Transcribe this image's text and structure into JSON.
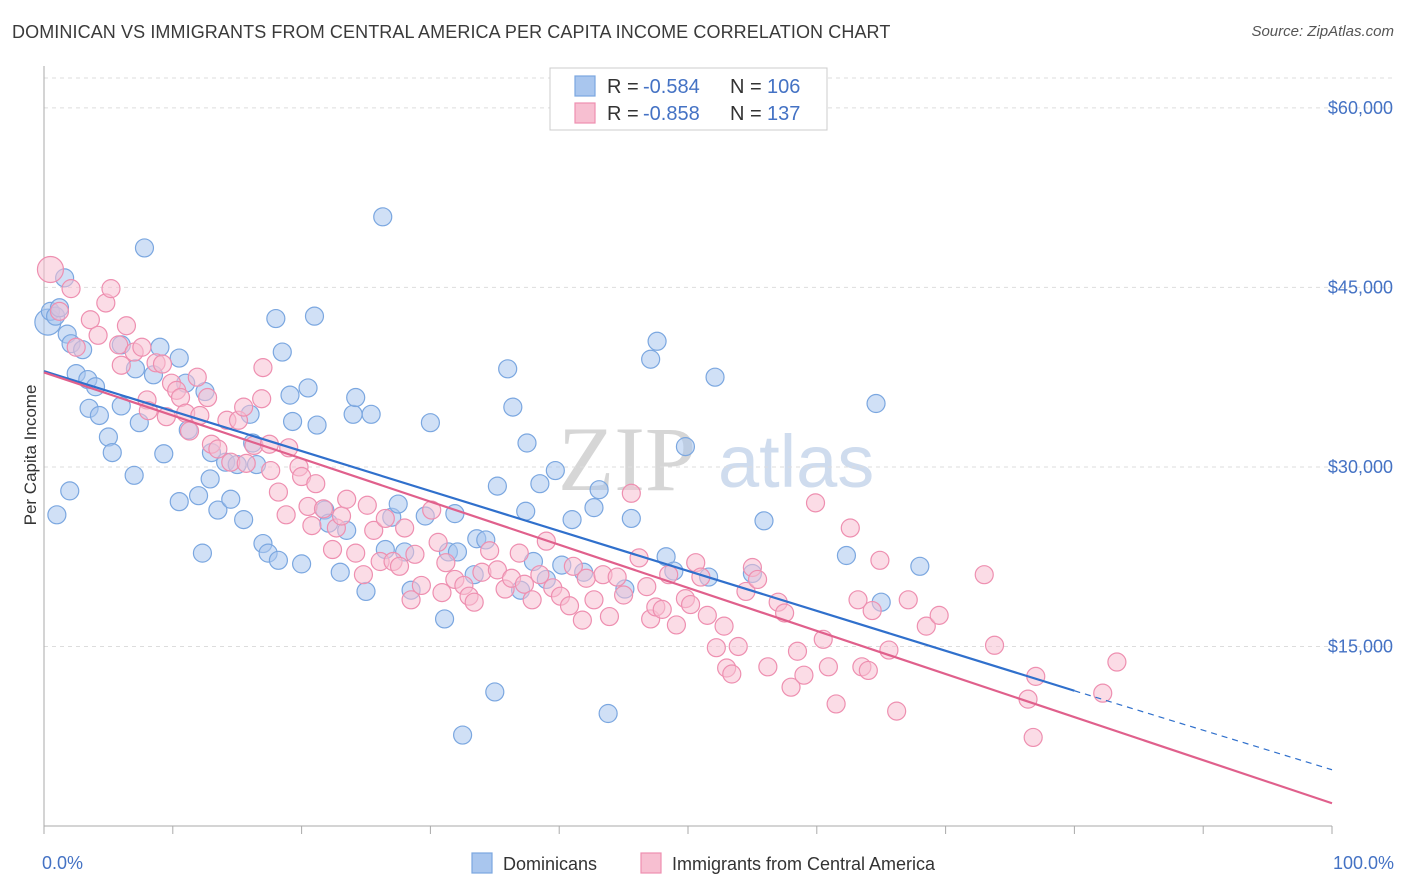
{
  "header": {
    "title": "DOMINICAN VS IMMIGRANTS FROM CENTRAL AMERICA PER CAPITA INCOME CORRELATION CHART",
    "source": "Source: ZipAtlas.com"
  },
  "watermark": {
    "zip": "ZIP",
    "atlas": "atlas"
  },
  "legend": {
    "rows": [
      {
        "r_label": "R = ",
        "r_value": "-0.584",
        "n_label": "N = ",
        "n_value": "106",
        "color": "#7ba7e0"
      },
      {
        "r_label": "R = ",
        "r_value": "-0.858",
        "n_label": "N = ",
        "n_value": "137",
        "color": "#f29bb8"
      }
    ]
  },
  "colors": {
    "blue_fill": "#a9c6ee",
    "blue_stroke": "#7ba7e0",
    "blue_line": "#3070cc",
    "pink_fill": "#f7bfd1",
    "pink_stroke": "#ee8fb0",
    "pink_line": "#e0608c",
    "grid": "#dddddd",
    "tick_label": "#4472c4"
  },
  "chart_data": {
    "type": "scatter",
    "title": "DOMINICAN VS IMMIGRANTS FROM CENTRAL AMERICA PER CAPITA INCOME CORRELATION CHART",
    "xlabel": "",
    "ylabel": "Per Capita Income",
    "xlim": [
      0,
      100
    ],
    "ylim": [
      0,
      63000
    ],
    "x_tick_labels": [
      "0.0%",
      "100.0%"
    ],
    "y_ticks": [
      15000,
      30000,
      45000,
      60000
    ],
    "y_tick_labels": [
      "$15,000",
      "$30,000",
      "$45,000",
      "$60,000"
    ],
    "grid": true,
    "legend_position": "top-center",
    "series": [
      {
        "name": "Dominicans",
        "R": -0.584,
        "N": 106,
        "trend": {
          "x0": 0,
          "y0": 38000,
          "x1": 80,
          "y1": 11300,
          "dashed_to_x": 100,
          "dashed_to_y": 4700
        },
        "points": [
          [
            0.3,
            42100
          ],
          [
            0.5,
            43000
          ],
          [
            0.9,
            42600
          ],
          [
            1.2,
            43300
          ],
          [
            1.6,
            45800
          ],
          [
            1.8,
            41100
          ],
          [
            2.1,
            40300
          ],
          [
            2.5,
            37800
          ],
          [
            3.0,
            39800
          ],
          [
            3.4,
            37300
          ],
          [
            3.5,
            34900
          ],
          [
            4.0,
            36700
          ],
          [
            4.3,
            34300
          ],
          [
            5.0,
            32500
          ],
          [
            5.3,
            31200
          ],
          [
            6.0,
            35100
          ],
          [
            6.0,
            40200
          ],
          [
            7.0,
            29300
          ],
          [
            7.1,
            38200
          ],
          [
            7.4,
            33700
          ],
          [
            7.8,
            48300
          ],
          [
            8.5,
            37700
          ],
          [
            9.0,
            40000
          ],
          [
            9.3,
            31100
          ],
          [
            10.5,
            39100
          ],
          [
            10.5,
            27100
          ],
          [
            11.0,
            37000
          ],
          [
            11.2,
            33100
          ],
          [
            12.0,
            27600
          ],
          [
            12.3,
            22800
          ],
          [
            12.5,
            36300
          ],
          [
            12.9,
            29000
          ],
          [
            13.0,
            31200
          ],
          [
            13.5,
            26400
          ],
          [
            14.1,
            30400
          ],
          [
            14.5,
            27300
          ],
          [
            15.0,
            30200
          ],
          [
            15.5,
            25600
          ],
          [
            16.0,
            34400
          ],
          [
            16.2,
            32000
          ],
          [
            16.5,
            30200
          ],
          [
            17.0,
            23600
          ],
          [
            17.4,
            22800
          ],
          [
            18.0,
            42400
          ],
          [
            18.2,
            22200
          ],
          [
            18.5,
            39600
          ],
          [
            19.1,
            36000
          ],
          [
            19.3,
            33800
          ],
          [
            20.0,
            21900
          ],
          [
            20.5,
            36600
          ],
          [
            21.0,
            42600
          ],
          [
            21.2,
            33500
          ],
          [
            21.8,
            26400
          ],
          [
            22.1,
            25300
          ],
          [
            23.0,
            21200
          ],
          [
            23.5,
            24700
          ],
          [
            24.0,
            34400
          ],
          [
            24.2,
            35800
          ],
          [
            25.0,
            19600
          ],
          [
            25.4,
            34400
          ],
          [
            26.3,
            50900
          ],
          [
            26.5,
            23100
          ],
          [
            27.0,
            25800
          ],
          [
            27.5,
            26900
          ],
          [
            28.0,
            22900
          ],
          [
            28.5,
            19700
          ],
          [
            29.6,
            25900
          ],
          [
            30.0,
            33700
          ],
          [
            31.1,
            17300
          ],
          [
            31.4,
            22900
          ],
          [
            31.9,
            26100
          ],
          [
            32.1,
            22900
          ],
          [
            32.5,
            7600
          ],
          [
            33.4,
            21000
          ],
          [
            33.6,
            24000
          ],
          [
            34.3,
            23900
          ],
          [
            35.0,
            11200
          ],
          [
            35.2,
            28400
          ],
          [
            36.0,
            38200
          ],
          [
            36.4,
            35000
          ],
          [
            37.0,
            19700
          ],
          [
            37.4,
            26300
          ],
          [
            37.5,
            32000
          ],
          [
            38.0,
            22100
          ],
          [
            38.5,
            28600
          ],
          [
            39.0,
            20600
          ],
          [
            39.7,
            29700
          ],
          [
            40.2,
            21800
          ],
          [
            41.0,
            25600
          ],
          [
            41.9,
            21200
          ],
          [
            42.7,
            26600
          ],
          [
            43.1,
            28100
          ],
          [
            43.8,
            9400
          ],
          [
            45.1,
            19800
          ],
          [
            45.6,
            25700
          ],
          [
            47.1,
            39000
          ],
          [
            47.6,
            40500
          ],
          [
            48.3,
            22500
          ],
          [
            48.9,
            21300
          ],
          [
            49.8,
            31700
          ],
          [
            51.6,
            20800
          ],
          [
            52.1,
            37500
          ],
          [
            55.0,
            21100
          ],
          [
            55.9,
            25500
          ],
          [
            62.3,
            22600
          ],
          [
            64.6,
            35300
          ],
          [
            65.0,
            18700
          ],
          [
            68.0,
            21700
          ],
          [
            1.0,
            26000
          ],
          [
            2.0,
            28000
          ]
        ]
      },
      {
        "name": "Immigrants from Central America",
        "R": -0.858,
        "N": 137,
        "trend": {
          "x0": 0,
          "y0": 37900,
          "x1": 100,
          "y1": 1900
        },
        "points": [
          [
            0.5,
            46500
          ],
          [
            1.2,
            43000
          ],
          [
            2.1,
            44900
          ],
          [
            2.5,
            40000
          ],
          [
            3.6,
            42300
          ],
          [
            4.2,
            41000
          ],
          [
            4.8,
            43700
          ],
          [
            5.2,
            44900
          ],
          [
            5.8,
            40200
          ],
          [
            6.0,
            38500
          ],
          [
            6.4,
            41800
          ],
          [
            7.0,
            39600
          ],
          [
            7.6,
            40000
          ],
          [
            8.0,
            35600
          ],
          [
            8.1,
            34700
          ],
          [
            8.7,
            38700
          ],
          [
            9.2,
            38600
          ],
          [
            9.5,
            34200
          ],
          [
            9.9,
            37000
          ],
          [
            10.3,
            36400
          ],
          [
            10.6,
            35800
          ],
          [
            11.0,
            34500
          ],
          [
            11.3,
            33000
          ],
          [
            11.9,
            37500
          ],
          [
            12.1,
            34300
          ],
          [
            12.7,
            35800
          ],
          [
            13.0,
            31900
          ],
          [
            13.5,
            31500
          ],
          [
            14.2,
            33900
          ],
          [
            14.5,
            30400
          ],
          [
            15.1,
            33900
          ],
          [
            15.5,
            35000
          ],
          [
            15.7,
            30300
          ],
          [
            16.3,
            31800
          ],
          [
            16.9,
            35700
          ],
          [
            17.0,
            38300
          ],
          [
            17.5,
            31900
          ],
          [
            17.6,
            29700
          ],
          [
            18.2,
            27900
          ],
          [
            18.8,
            26000
          ],
          [
            19.0,
            31600
          ],
          [
            19.8,
            30000
          ],
          [
            20.0,
            29200
          ],
          [
            20.5,
            26700
          ],
          [
            20.8,
            25100
          ],
          [
            21.1,
            28600
          ],
          [
            21.7,
            26500
          ],
          [
            22.4,
            23100
          ],
          [
            22.7,
            24900
          ],
          [
            23.1,
            25900
          ],
          [
            23.5,
            27300
          ],
          [
            24.2,
            22800
          ],
          [
            24.8,
            21000
          ],
          [
            25.1,
            26800
          ],
          [
            25.6,
            24700
          ],
          [
            26.1,
            22100
          ],
          [
            26.5,
            25700
          ],
          [
            27.1,
            22100
          ],
          [
            27.6,
            21700
          ],
          [
            28.0,
            24900
          ],
          [
            28.5,
            18900
          ],
          [
            28.8,
            22700
          ],
          [
            29.3,
            20100
          ],
          [
            30.1,
            26400
          ],
          [
            30.6,
            23700
          ],
          [
            30.9,
            19500
          ],
          [
            31.2,
            22000
          ],
          [
            31.9,
            20600
          ],
          [
            32.6,
            20100
          ],
          [
            33.0,
            19200
          ],
          [
            33.4,
            18700
          ],
          [
            34.0,
            21200
          ],
          [
            34.6,
            23000
          ],
          [
            35.2,
            21400
          ],
          [
            35.8,
            19800
          ],
          [
            36.3,
            20700
          ],
          [
            36.9,
            22800
          ],
          [
            37.3,
            20200
          ],
          [
            37.9,
            18900
          ],
          [
            38.5,
            21000
          ],
          [
            39.0,
            23800
          ],
          [
            39.5,
            19900
          ],
          [
            40.1,
            19200
          ],
          [
            40.8,
            18400
          ],
          [
            41.1,
            21700
          ],
          [
            41.8,
            17200
          ],
          [
            42.1,
            20700
          ],
          [
            42.7,
            18900
          ],
          [
            43.4,
            21000
          ],
          [
            43.9,
            17500
          ],
          [
            44.5,
            20800
          ],
          [
            45.0,
            19300
          ],
          [
            45.6,
            27800
          ],
          [
            46.2,
            22400
          ],
          [
            46.8,
            20000
          ],
          [
            47.1,
            17300
          ],
          [
            47.5,
            18300
          ],
          [
            48.0,
            18100
          ],
          [
            48.5,
            21000
          ],
          [
            49.1,
            16800
          ],
          [
            49.8,
            19000
          ],
          [
            50.2,
            18500
          ],
          [
            50.6,
            22000
          ],
          [
            51.0,
            20800
          ],
          [
            51.5,
            17600
          ],
          [
            52.2,
            14900
          ],
          [
            52.8,
            16700
          ],
          [
            53.0,
            13200
          ],
          [
            53.4,
            12700
          ],
          [
            53.9,
            15000
          ],
          [
            54.5,
            19600
          ],
          [
            55.0,
            21600
          ],
          [
            55.4,
            20600
          ],
          [
            56.2,
            13300
          ],
          [
            57.0,
            18700
          ],
          [
            57.5,
            17800
          ],
          [
            58.0,
            11600
          ],
          [
            58.5,
            14600
          ],
          [
            59.0,
            12600
          ],
          [
            59.9,
            27000
          ],
          [
            60.5,
            15600
          ],
          [
            60.9,
            13300
          ],
          [
            61.5,
            10200
          ],
          [
            62.6,
            24900
          ],
          [
            63.2,
            18900
          ],
          [
            63.5,
            13300
          ],
          [
            64.0,
            13000
          ],
          [
            64.3,
            18000
          ],
          [
            64.9,
            22200
          ],
          [
            65.6,
            14700
          ],
          [
            66.2,
            9600
          ],
          [
            67.1,
            18900
          ],
          [
            68.5,
            16700
          ],
          [
            69.5,
            17600
          ],
          [
            73.0,
            21000
          ],
          [
            73.8,
            15100
          ],
          [
            76.4,
            10600
          ],
          [
            76.8,
            7400
          ],
          [
            77.0,
            12500
          ],
          [
            82.2,
            11100
          ],
          [
            83.3,
            13700
          ]
        ]
      }
    ]
  },
  "bottom_legend": {
    "items": [
      {
        "label": "Dominicans",
        "color": "#7ba7e0"
      },
      {
        "label": "Immigrants from Central America",
        "color": "#f29bb8"
      }
    ]
  }
}
